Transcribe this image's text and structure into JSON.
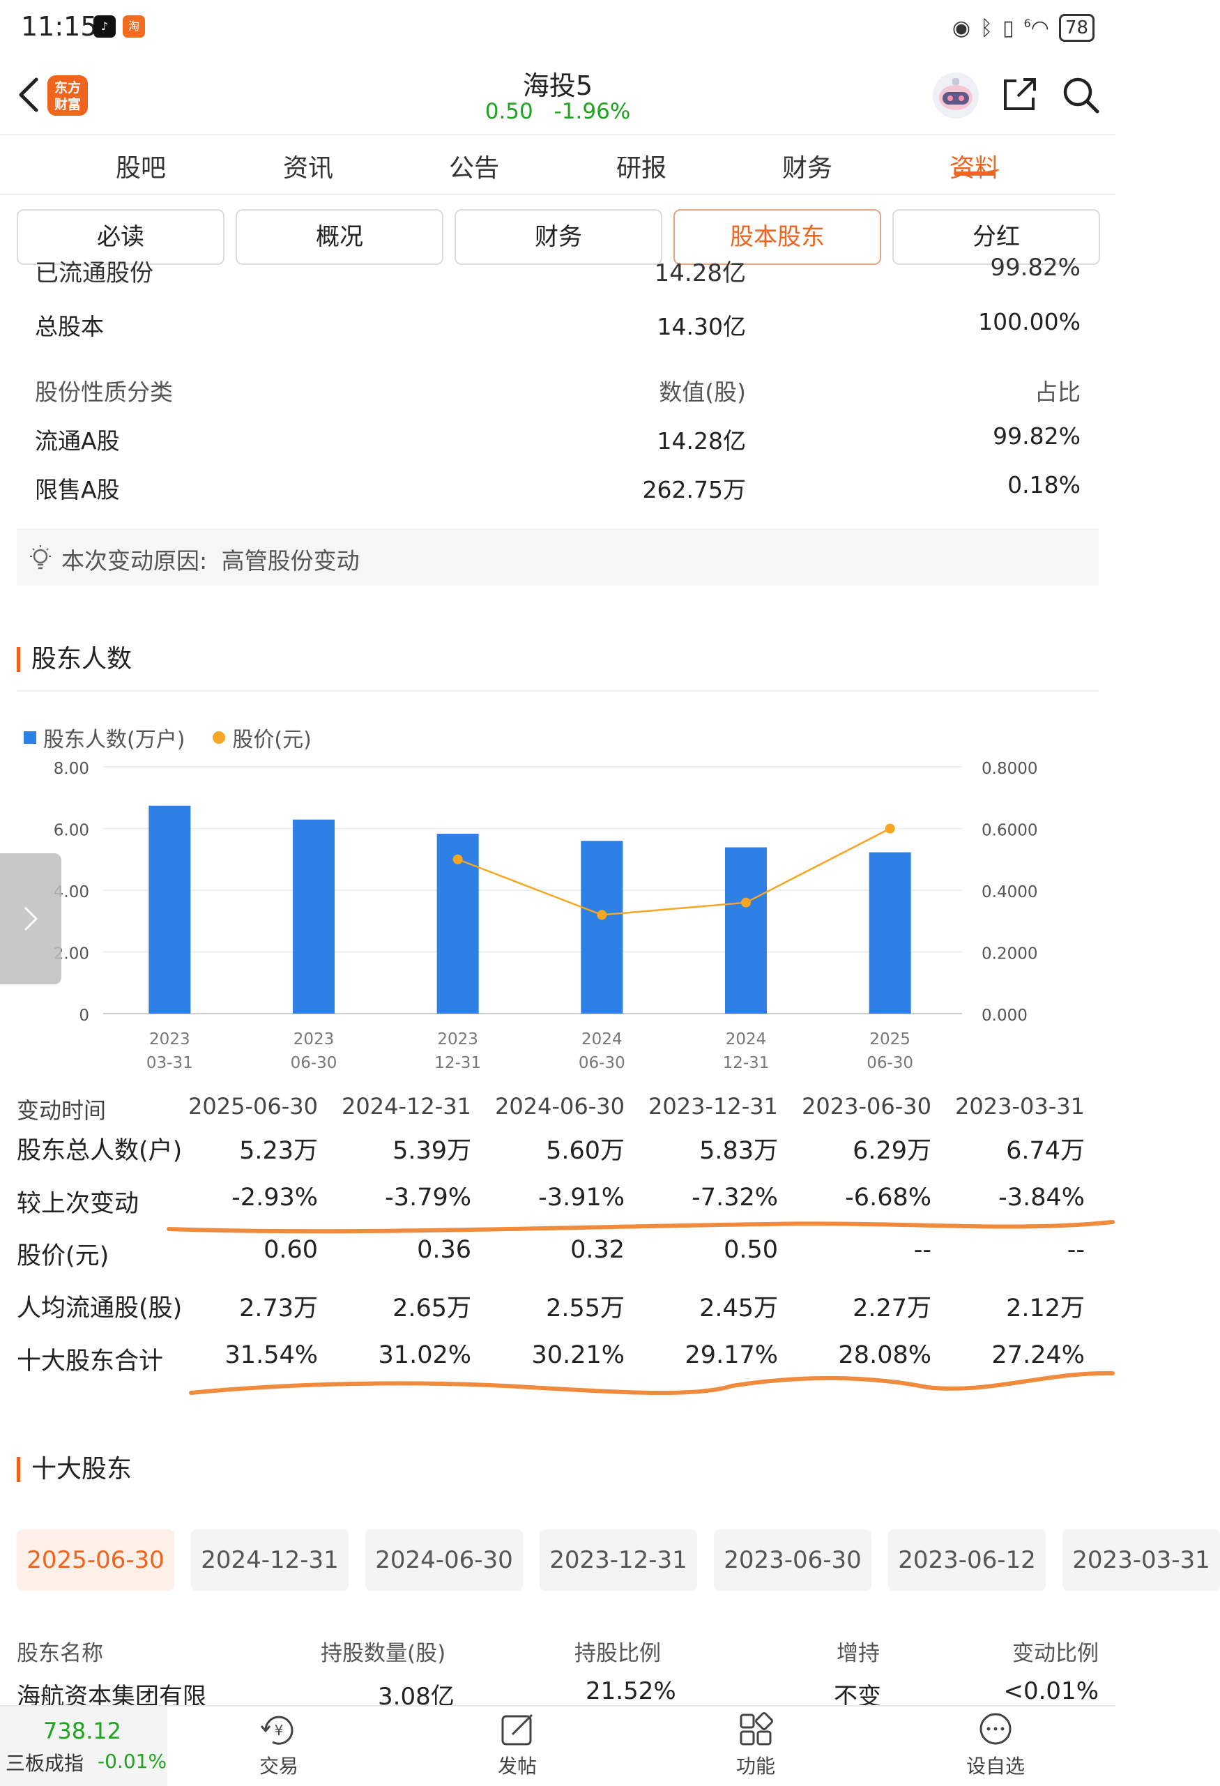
{
  "status": {
    "time": "11:15",
    "battery": "78",
    "signal": "6"
  },
  "header": {
    "logo_text_1": "东方",
    "logo_text_2": "财富",
    "stock_name": "海投5",
    "price": "0.50",
    "change": "-1.96%"
  },
  "tabs": [
    {
      "label": "股吧"
    },
    {
      "label": "资讯"
    },
    {
      "label": "公告"
    },
    {
      "label": "研报"
    },
    {
      "label": "财务"
    },
    {
      "label": "资料",
      "active": true
    }
  ],
  "subtabs": [
    {
      "label": "必读"
    },
    {
      "label": "概况"
    },
    {
      "label": "财务"
    },
    {
      "label": "股本股东",
      "active": true
    },
    {
      "label": "分红"
    }
  ],
  "share_structure": {
    "cut_row": {
      "name": "已流通股份",
      "value": "14.28亿",
      "ratio": "99.82%"
    },
    "total": {
      "name": "总股本",
      "value": "14.30亿",
      "ratio": "100.00%"
    },
    "header": {
      "name": "股份性质分类",
      "value": "数值(股)",
      "ratio": "占比"
    },
    "rows": [
      {
        "name": "流通A股",
        "value": "14.28亿",
        "ratio": "99.82%"
      },
      {
        "name": "限售A股",
        "value": "262.75万",
        "ratio": "0.18%"
      }
    ],
    "reason_label": "本次变动原因:",
    "reason_value": "高管股份变动"
  },
  "shareholders_section": {
    "title": "股东人数"
  },
  "chart_data": {
    "type": "bar",
    "legend": [
      "股东人数(万户)",
      "股价(元)"
    ],
    "categories": [
      "2023\n03-31",
      "2023\n06-30",
      "2023\n12-31",
      "2024\n06-30",
      "2024\n12-31",
      "2025\n06-30"
    ],
    "category_years": [
      "2023",
      "2023",
      "2023",
      "2024",
      "2024",
      "2025"
    ],
    "category_dates": [
      "03-31",
      "06-30",
      "12-31",
      "06-30",
      "12-31",
      "06-30"
    ],
    "series": [
      {
        "name": "股东人数(万户)",
        "type": "bar",
        "axis": "left",
        "color": "#2e80e6",
        "values": [
          6.74,
          6.29,
          5.83,
          5.6,
          5.39,
          5.23
        ]
      },
      {
        "name": "股价(元)",
        "type": "line",
        "axis": "right",
        "color": "#f5a623",
        "values": [
          null,
          null,
          0.5,
          0.32,
          0.36,
          0.6
        ]
      }
    ],
    "y_left": {
      "ylim": [
        0,
        8
      ],
      "ticks": [
        "0",
        "2.00",
        "4.00",
        "6.00",
        "8.00"
      ]
    },
    "y_right": {
      "ylim": [
        0,
        0.8
      ],
      "ticks": [
        "0.000",
        "0.2000",
        "0.4000",
        "0.6000",
        "0.8000"
      ]
    },
    "grid": true,
    "legend_position": "top-left"
  },
  "stats_table": {
    "header_label": "变动时间",
    "dates": [
      "2025-06-30",
      "2024-12-31",
      "2024-06-30",
      "2023-12-31",
      "2023-06-30",
      "2023-03-31"
    ],
    "rows": [
      {
        "label": "股东总人数(户)",
        "values": [
          "5.23万",
          "5.39万",
          "5.60万",
          "5.83万",
          "6.29万",
          "6.74万"
        ]
      },
      {
        "label": "较上次变动",
        "values": [
          "-2.93%",
          "-3.79%",
          "-3.91%",
          "-7.32%",
          "-6.68%",
          "-3.84%"
        ]
      },
      {
        "label": "股价(元)",
        "values": [
          "0.60",
          "0.36",
          "0.32",
          "0.50",
          "--",
          "--"
        ]
      },
      {
        "label": "人均流通股(股)",
        "values": [
          "2.73万",
          "2.65万",
          "2.55万",
          "2.45万",
          "2.27万",
          "2.12万"
        ]
      },
      {
        "label": "十大股东合计",
        "values": [
          "31.54%",
          "31.02%",
          "30.21%",
          "29.17%",
          "28.08%",
          "27.24%"
        ]
      }
    ]
  },
  "top10": {
    "title": "十大股东",
    "dates": [
      "2025-06-30",
      "2024-12-31",
      "2024-06-30",
      "2023-12-31",
      "2023-06-30",
      "2023-06-12",
      "2023-03-31"
    ],
    "columns": [
      "股东名称",
      "持股数量(股)",
      "持股比例",
      "增持",
      "变动比例"
    ],
    "first_row": [
      "海航资本集团有限",
      "3.08亿",
      "21.52%",
      "不变",
      "<0.01%"
    ]
  },
  "bottombar": {
    "index_value": "738.12",
    "index_name": "三板成指",
    "index_change": "-0.01%",
    "trade_label": "交易",
    "post_label": "发帖",
    "function_label": "功能",
    "watchlist_label": "设自选"
  },
  "colors": {
    "accent": "#f0641e",
    "up_green": "#1fa41f",
    "bar_blue": "#2e80e6",
    "line_orange": "#f5a623",
    "annotation": "#f08a3c"
  }
}
